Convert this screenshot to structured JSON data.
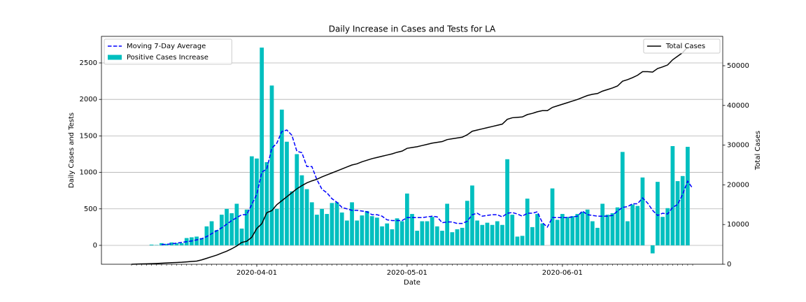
{
  "chart_data": {
    "type": "combo",
    "title": "Daily Increase in Cases and Tests for LA",
    "x_label": "Date",
    "y_label": "Daily Cases and Tests",
    "y2_label": "Total Cases",
    "x": [
      "2020-03-07",
      "2020-03-08",
      "2020-03-09",
      "2020-03-10",
      "2020-03-11",
      "2020-03-12",
      "2020-03-13",
      "2020-03-14",
      "2020-03-15",
      "2020-03-16",
      "2020-03-17",
      "2020-03-18",
      "2020-03-19",
      "2020-03-20",
      "2020-03-21",
      "2020-03-22",
      "2020-03-23",
      "2020-03-24",
      "2020-03-25",
      "2020-03-26",
      "2020-03-27",
      "2020-03-28",
      "2020-03-29",
      "2020-03-30",
      "2020-03-31",
      "2020-04-01",
      "2020-04-02",
      "2020-04-03",
      "2020-04-04",
      "2020-04-05",
      "2020-04-06",
      "2020-04-07",
      "2020-04-08",
      "2020-04-09",
      "2020-04-10",
      "2020-04-11",
      "2020-04-12",
      "2020-04-13",
      "2020-04-14",
      "2020-04-15",
      "2020-04-16",
      "2020-04-17",
      "2020-04-18",
      "2020-04-19",
      "2020-04-20",
      "2020-04-21",
      "2020-04-22",
      "2020-04-23",
      "2020-04-24",
      "2020-04-25",
      "2020-04-26",
      "2020-04-27",
      "2020-04-28",
      "2020-04-29",
      "2020-04-30",
      "2020-05-01",
      "2020-05-02",
      "2020-05-03",
      "2020-05-04",
      "2020-05-05",
      "2020-05-06",
      "2020-05-07",
      "2020-05-08",
      "2020-05-09",
      "2020-05-10",
      "2020-05-11",
      "2020-05-12",
      "2020-05-13",
      "2020-05-14",
      "2020-05-15",
      "2020-05-16",
      "2020-05-17",
      "2020-05-18",
      "2020-05-19",
      "2020-05-20",
      "2020-05-21",
      "2020-05-22",
      "2020-05-23",
      "2020-05-24",
      "2020-05-25",
      "2020-05-26",
      "2020-05-27",
      "2020-05-28",
      "2020-05-29",
      "2020-05-30",
      "2020-05-31",
      "2020-06-01",
      "2020-06-02",
      "2020-06-03",
      "2020-06-04",
      "2020-06-05",
      "2020-06-06",
      "2020-06-07",
      "2020-06-08",
      "2020-06-09",
      "2020-06-10",
      "2020-06-11",
      "2020-06-12",
      "2020-06-13",
      "2020-06-14",
      "2020-06-15",
      "2020-06-16",
      "2020-06-17",
      "2020-06-18",
      "2020-06-19",
      "2020-06-20",
      "2020-06-21",
      "2020-06-22",
      "2020-06-23",
      "2020-06-24",
      "2020-06-25",
      "2020-06-26",
      "2020-06-27"
    ],
    "xlim": [
      "2020-03-01",
      "2020-07-03"
    ],
    "xticks": [
      "2020-04-01",
      "2020-05-01",
      "2020-06-01"
    ],
    "ylim": [
      -259,
      2864
    ],
    "yticks": [
      0,
      500,
      1000,
      1500,
      2000,
      2500
    ],
    "y2lim": [
      0,
      57400
    ],
    "y2ticks": [
      0,
      10000,
      20000,
      30000,
      40000,
      50000
    ],
    "grid": true,
    "legend": "upper left",
    "legend2": "upper right",
    "series": [
      {
        "name": "Moving 7-Day Average",
        "type": "line",
        "dashed": true,
        "color": "#0000ff",
        "values": [
          null,
          null,
          null,
          null,
          null,
          null,
          10,
          15,
          20,
          30,
          40,
          50,
          60,
          75,
          90,
          120,
          160,
          200,
          240,
          290,
          340,
          380,
          420,
          420,
          560,
          700,
          1000,
          1050,
          1330,
          1400,
          1560,
          1580,
          1510,
          1290,
          1270,
          1080,
          1080,
          900,
          770,
          720,
          640,
          590,
          520,
          500,
          480,
          480,
          470,
          460,
          420,
          420,
          400,
          350,
          340,
          340,
          340,
          380,
          380,
          380,
          380,
          390,
          400,
          390,
          310,
          320,
          320,
          300,
          300,
          330,
          420,
          440,
          400,
          410,
          420,
          420,
          390,
          440,
          450,
          430,
          400,
          440,
          440,
          460,
          310,
          250,
          380,
          380,
          380,
          380,
          390,
          400,
          470,
          420,
          410,
          400,
          400,
          400,
          410,
          470,
          520,
          530,
          570,
          570,
          650,
          580,
          480,
          410,
          440,
          430,
          520,
          560,
          700,
          880,
          780
        ]
      },
      {
        "name": "Positive Cases Increase",
        "type": "bar",
        "color": "#00bfbf",
        "values": [
          0,
          0,
          0,
          0,
          10,
          5,
          30,
          20,
          40,
          30,
          30,
          100,
          110,
          120,
          100,
          260,
          330,
          210,
          420,
          500,
          440,
          570,
          230,
          490,
          1220,
          1190,
          2710,
          1140,
          2190,
          500,
          1860,
          1420,
          740,
          1250,
          960,
          770,
          590,
          420,
          500,
          430,
          580,
          590,
          450,
          340,
          590,
          340,
          410,
          470,
          400,
          380,
          260,
          300,
          220,
          370,
          330,
          710,
          430,
          200,
          330,
          330,
          390,
          260,
          200,
          570,
          180,
          220,
          240,
          610,
          820,
          340,
          280,
          310,
          280,
          330,
          280,
          1180,
          420,
          120,
          130,
          640,
          250,
          430,
          300,
          0,
          780,
          350,
          430,
          390,
          400,
          430,
          460,
          490,
          330,
          240,
          570,
          420,
          440,
          520,
          1280,
          330,
          560,
          540,
          930,
          0,
          -110,
          870,
          390,
          510,
          1360,
          880,
          950,
          1350,
          null
        ]
      },
      {
        "name": "Total Cases",
        "type": "line",
        "axis": "y2",
        "color": "#000000",
        "values": [
          0,
          40,
          80,
          120,
          160,
          200,
          260,
          320,
          400,
          450,
          500,
          600,
          700,
          800,
          1100,
          1500,
          1900,
          2300,
          2800,
          3300,
          3900,
          4600,
          5500,
          5800,
          6800,
          9000,
          10200,
          13000,
          13500,
          15000,
          16000,
          17000,
          18000,
          19000,
          19800,
          20500,
          21000,
          21400,
          22000,
          22500,
          23000,
          23500,
          24000,
          24500,
          25000,
          25300,
          25800,
          26200,
          26600,
          26900,
          27200,
          27500,
          27800,
          28200,
          28500,
          29200,
          29400,
          29600,
          29900,
          30200,
          30500,
          30700,
          30900,
          31400,
          31600,
          31800,
          32000,
          32600,
          33500,
          33800,
          34100,
          34400,
          34700,
          35000,
          35300,
          36500,
          36900,
          37000,
          37100,
          37700,
          38000,
          38400,
          38700,
          38700,
          39500,
          39900,
          40300,
          40700,
          41100,
          41500,
          42000,
          42500,
          42800,
          43000,
          43600,
          44000,
          44400,
          44900,
          46100,
          46500,
          47000,
          47600,
          48500,
          48500,
          48400,
          49300,
          49700,
          50200,
          51500,
          52400,
          53300,
          54700,
          null
        ]
      }
    ]
  }
}
